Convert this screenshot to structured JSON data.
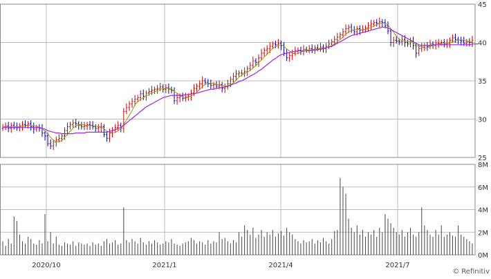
{
  "credit": "© Refinitiv",
  "chart_data": [
    {
      "type": "candlestick",
      "panel": "price",
      "y_ticks": [
        "45",
        "40",
        "35",
        "30",
        "25"
      ],
      "y_tick_values": [
        45,
        40,
        35,
        30,
        25
      ],
      "ylim": [
        25,
        45
      ],
      "grid": true,
      "x_ticks": [
        "2020/10",
        "2021/1",
        "2021/4",
        "2021/7"
      ],
      "moving_average_color": "#a020f0",
      "short_ma_color": "#999900",
      "up_color": "#cc0000",
      "down_color": "#000099",
      "closes": [
        29.0,
        29.1,
        28.8,
        29.2,
        29.0,
        28.9,
        29.1,
        29.3,
        29.2,
        29.4,
        29.0,
        28.7,
        28.9,
        28.8,
        28.2,
        27.8,
        26.8,
        26.5,
        27.0,
        27.3,
        27.5,
        27.8,
        28.5,
        29.0,
        29.3,
        29.5,
        29.4,
        29.2,
        29.0,
        29.1,
        29.3,
        29.2,
        29.0,
        28.8,
        28.9,
        29.0,
        28.0,
        27.5,
        28.2,
        28.6,
        28.9,
        29.2,
        28.8,
        31.0,
        31.5,
        32.0,
        32.3,
        32.6,
        32.8,
        33.3,
        33.0,
        33.4,
        33.6,
        33.8,
        33.9,
        34.0,
        34.2,
        33.9,
        34.1,
        33.9,
        33.7,
        32.4,
        32.8,
        33.0,
        32.7,
        32.9,
        33.0,
        33.4,
        34.0,
        34.3,
        34.6,
        35.0,
        34.8,
        34.6,
        34.4,
        34.5,
        34.3,
        34.5,
        34.0,
        34.2,
        34.6,
        35.2,
        35.6,
        35.9,
        36.0,
        36.0,
        36.2,
        36.6,
        37.0,
        37.6,
        37.4,
        38.0,
        38.6,
        39.0,
        39.2,
        39.5,
        39.8,
        39.7,
        39.9,
        39.6,
        38.6,
        38.0,
        38.3,
        38.6,
        38.9,
        39.0,
        38.9,
        39.1,
        39.0,
        39.2,
        39.1,
        39.3,
        39.2,
        39.4,
        39.2,
        39.5,
        39.8,
        40.1,
        40.4,
        40.7,
        41.0,
        41.4,
        41.8,
        42.0,
        41.6,
        41.4,
        41.8,
        41.6,
        41.7,
        41.9,
        42.2,
        42.4,
        42.6,
        42.5,
        42.7,
        42.6,
        42.2,
        41.5,
        40.0,
        40.3,
        40.2,
        40.1,
        40.4,
        40.0,
        39.8,
        40.2,
        39.6,
        38.6,
        39.2,
        39.4,
        39.6,
        39.5,
        39.8,
        39.6,
        39.9,
        39.9,
        40.0,
        39.8,
        39.9,
        40.3,
        40.6,
        40.4,
        40.3,
        40.2,
        39.9,
        40.1,
        40.0,
        40.3
      ],
      "ma_long": [
        28.9,
        28.9,
        28.9,
        28.9,
        28.9,
        28.9,
        28.9,
        28.9,
        28.9,
        28.9,
        28.9,
        28.9,
        28.9,
        28.9,
        28.8,
        28.7,
        28.5,
        28.4,
        28.3,
        28.2,
        28.2,
        28.1,
        28.1,
        28.1,
        28.1,
        28.1,
        28.2,
        28.2,
        28.2,
        28.2,
        28.3,
        28.3,
        28.3,
        28.3,
        28.3,
        28.3,
        28.3,
        28.3,
        28.4,
        28.5,
        28.6,
        28.8,
        28.9,
        29.2,
        29.5,
        29.8,
        30.1,
        30.4,
        30.7,
        31.0,
        31.3,
        31.6,
        31.8,
        32.0,
        32.2,
        32.4,
        32.6,
        32.8,
        32.9,
        33.0,
        33.1,
        33.1,
        33.1,
        33.1,
        33.1,
        33.2,
        33.2,
        33.3,
        33.3,
        33.4,
        33.5,
        33.6,
        33.7,
        33.8,
        33.9,
        33.9,
        34.0,
        34.1,
        34.1,
        34.2,
        34.3,
        34.4,
        34.6,
        34.7,
        34.9,
        35.0,
        35.2,
        35.4,
        35.6,
        35.8,
        36.0,
        36.3,
        36.5,
        36.8,
        37.1,
        37.4,
        37.7,
        37.9,
        38.2,
        38.4,
        38.5,
        38.6,
        38.7,
        38.8,
        38.8,
        38.9,
        38.9,
        38.9,
        38.9,
        38.9,
        39.0,
        39.0,
        39.1,
        39.1,
        39.2,
        39.3,
        39.4,
        39.5,
        39.7,
        39.9,
        40.1,
        40.3,
        40.5,
        40.7,
        40.9,
        41.0,
        41.1,
        41.2,
        41.3,
        41.4,
        41.5,
        41.6,
        41.7,
        41.8,
        41.9,
        42.0,
        42.0,
        41.9,
        41.7,
        41.5,
        41.3,
        41.1,
        40.9,
        40.7,
        40.5,
        40.3,
        40.1,
        39.9,
        39.7,
        39.6,
        39.6,
        39.6,
        39.6,
        39.7,
        39.7,
        39.7,
        39.7,
        39.7,
        39.7,
        39.7,
        39.7,
        39.7,
        39.7,
        39.7,
        39.7,
        39.7,
        39.7,
        39.8,
        39.8,
        39.8
      ]
    },
    {
      "type": "bar",
      "panel": "volume",
      "y_ticks": [
        "8M",
        "6M",
        "4M",
        "2M",
        "0M"
      ],
      "y_tick_values": [
        8,
        6,
        4,
        2,
        0
      ],
      "ylim": [
        0,
        8
      ],
      "grid": true,
      "color": "#444444",
      "values_millions": [
        1.2,
        0.8,
        1.4,
        1.0,
        3.4,
        3.0,
        1.8,
        1.2,
        1.0,
        1.6,
        1.4,
        1.0,
        0.9,
        1.3,
        1.0,
        3.6,
        1.2,
        2.0,
        1.0,
        1.6,
        0.9,
        0.8,
        1.1,
        1.0,
        0.9,
        1.2,
        0.8,
        1.1,
        1.0,
        0.9,
        1.0,
        0.8,
        1.1,
        0.9,
        1.0,
        0.8,
        1.2,
        1.4,
        1.0,
        1.1,
        1.3,
        0.9,
        1.0,
        4.2,
        1.3,
        1.1,
        1.4,
        1.2,
        1.0,
        1.5,
        1.1,
        0.9,
        1.2,
        1.0,
        1.3,
        1.1,
        0.9,
        1.0,
        1.2,
        1.1,
        1.4,
        1.0,
        0.9,
        0.8,
        1.0,
        1.1,
        1.2,
        1.5,
        1.3,
        1.0,
        1.2,
        1.1,
        0.9,
        1.3,
        1.0,
        1.2,
        1.1,
        2.0,
        1.4,
        1.5,
        1.2,
        1.0,
        1.3,
        1.1,
        2.0,
        1.6,
        2.6,
        2.2,
        1.8,
        2.4,
        1.5,
        1.8,
        2.2,
        1.6,
        2.0,
        1.8,
        2.2,
        1.6,
        1.9,
        2.1,
        1.7,
        2.4,
        2.0,
        1.8,
        1.4,
        1.2,
        1.0,
        1.3,
        1.1,
        1.2,
        1.4,
        1.0,
        1.3,
        1.1,
        1.5,
        1.2,
        1.0,
        1.4,
        2.1,
        2.2,
        6.8,
        6.0,
        5.4,
        3.2,
        2.4,
        2.0,
        2.6,
        1.8,
        2.2,
        1.6,
        2.0,
        1.8,
        2.2,
        1.6,
        2.4,
        2.0,
        3.6,
        3.2,
        2.8,
        2.4,
        2.0,
        1.8,
        2.2,
        1.6,
        2.0,
        2.4,
        1.8,
        1.6,
        2.0,
        4.2,
        2.6,
        2.2,
        1.8,
        1.6,
        2.2,
        1.8,
        2.6,
        1.6,
        1.8,
        2.0,
        1.7,
        1.6,
        2.6,
        1.8,
        1.6,
        1.4,
        1.2,
        1.0
      ]
    }
  ]
}
